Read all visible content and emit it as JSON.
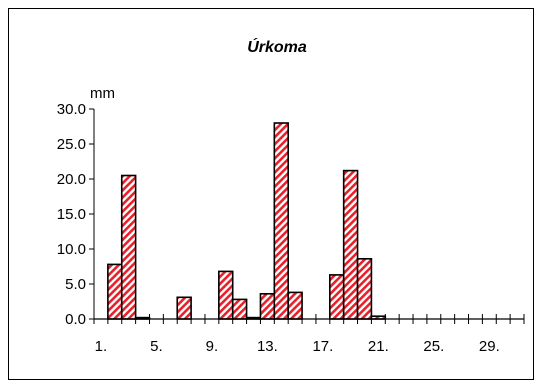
{
  "chart_data": {
    "type": "bar",
    "title": "Úrkoma",
    "ylabel": "mm",
    "xlabel": "",
    "ylim": [
      0,
      30
    ],
    "yticks": [
      "0.0",
      "5.0",
      "10.0",
      "15.0",
      "20.0",
      "25.0",
      "30.0"
    ],
    "xtick_labels": [
      "1.",
      "5.",
      "9.",
      "13.",
      "17.",
      "21.",
      "25.",
      "29."
    ],
    "days": [
      1,
      2,
      3,
      4,
      5,
      6,
      7,
      8,
      9,
      10,
      11,
      12,
      13,
      14,
      15,
      16,
      17,
      18,
      19,
      20,
      21,
      22,
      23,
      24,
      25,
      26,
      27,
      28,
      29,
      30,
      31
    ],
    "values": [
      0,
      7.8,
      20.5,
      0.2,
      0,
      0,
      3.1,
      0,
      0,
      6.8,
      2.8,
      0.2,
      3.6,
      28.0,
      3.8,
      0,
      0,
      6.3,
      21.2,
      8.6,
      0.4,
      0,
      0,
      0,
      0,
      0,
      0,
      0,
      0,
      0,
      0
    ],
    "grid": false,
    "legend": "none",
    "colors": {
      "bar_stripe": "#e8202a",
      "bar_bg": "#ffffff",
      "edge": "#000000"
    }
  }
}
